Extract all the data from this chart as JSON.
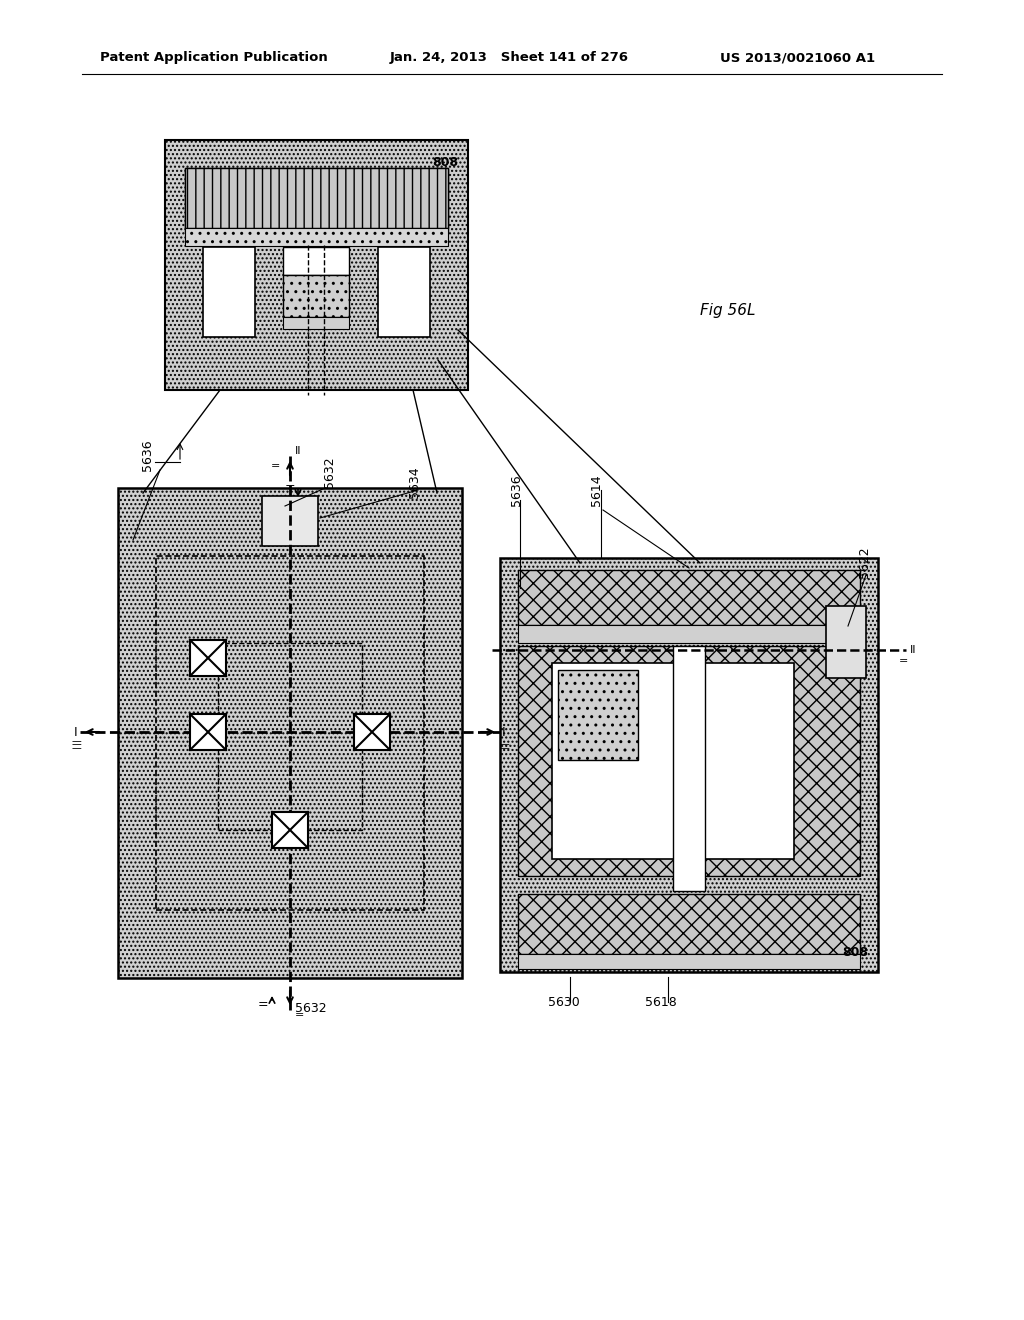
{
  "header_left": "Patent Application Publication",
  "header_center": "Jan. 24, 2013   Sheet 141 of 276",
  "header_right": "US 2013/0021060 A1",
  "fig_label": "Fig 56L",
  "bg_color": "#ffffff",
  "gray_bg": "#c8c8c8",
  "gray_dot_dark": "#a8a8a8",
  "gray_dot_light": "#d8d8d8",
  "white": "#ffffff"
}
